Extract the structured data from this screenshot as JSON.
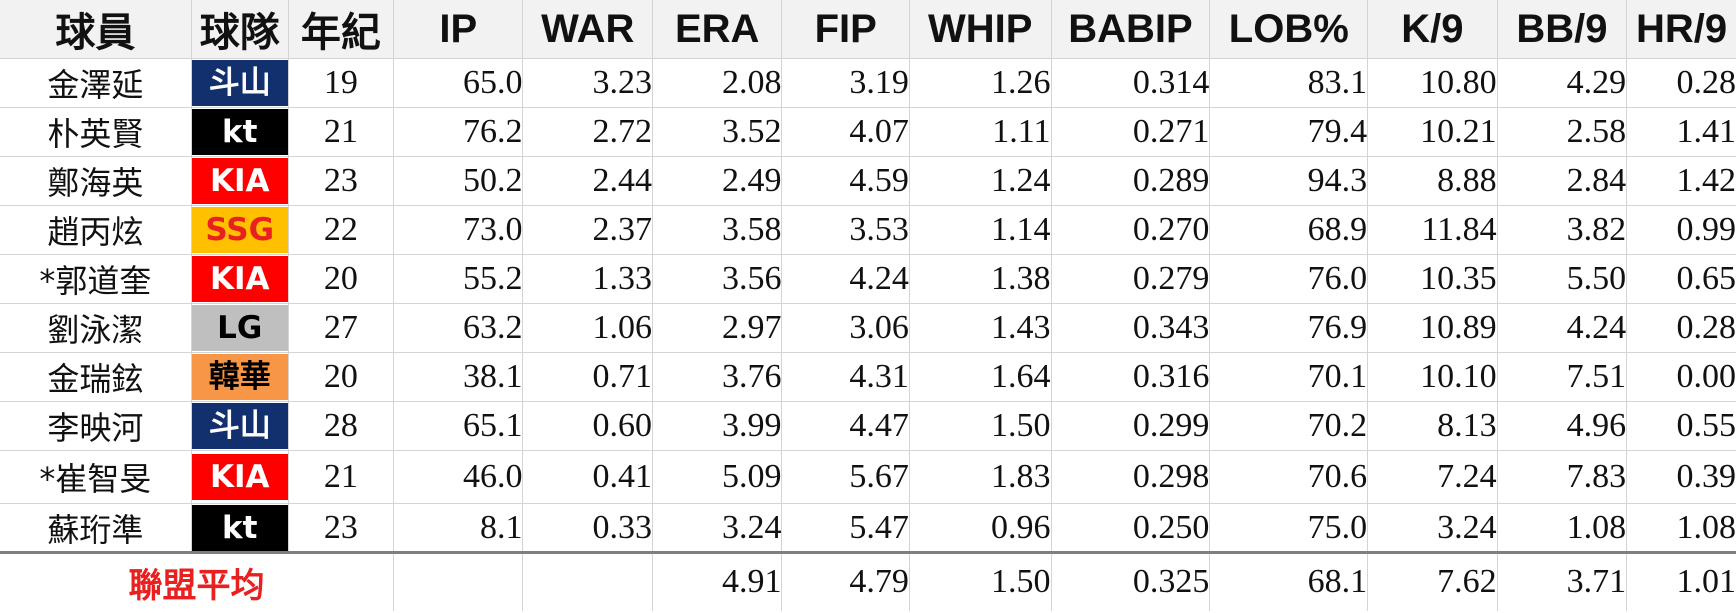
{
  "headers": [
    "球員",
    "球隊",
    "年紀",
    "IP",
    "WAR",
    "ERA",
    "FIP",
    "WHIP",
    "BABIP",
    "LOB%",
    "K/9",
    "BB/9",
    "HR/9"
  ],
  "team_colors": {
    "斗山": {
      "bg": "#13306e",
      "fg": "#ffffff"
    },
    "kt": {
      "bg": "#000000",
      "fg": "#ffffff"
    },
    "KIA": {
      "bg": "#ff0000",
      "fg": "#ffffff"
    },
    "SSG": {
      "bg": "#ffc000",
      "fg": "#e8201f"
    },
    "LG": {
      "bg": "#bfbfbf",
      "fg": "#000000"
    },
    "韓華": {
      "bg": "#f79646",
      "fg": "#000000"
    }
  },
  "rows": [
    {
      "player": "金澤延",
      "team": "斗山",
      "age": "19",
      "ip": "65.0",
      "war": "3.23",
      "era": "2.08",
      "fip": "3.19",
      "whip": "1.26",
      "babip": "0.314",
      "lob": "83.1",
      "k9": "10.80",
      "bb9": "4.29",
      "hr9": "0.28"
    },
    {
      "player": "朴英賢",
      "team": "kt",
      "age": "21",
      "ip": "76.2",
      "war": "2.72",
      "era": "3.52",
      "fip": "4.07",
      "whip": "1.11",
      "babip": "0.271",
      "lob": "79.4",
      "k9": "10.21",
      "bb9": "2.58",
      "hr9": "1.41"
    },
    {
      "player": "鄭海英",
      "team": "KIA",
      "age": "23",
      "ip": "50.2",
      "war": "2.44",
      "era": "2.49",
      "fip": "4.59",
      "whip": "1.24",
      "babip": "0.289",
      "lob": "94.3",
      "k9": "8.88",
      "bb9": "2.84",
      "hr9": "1.42"
    },
    {
      "player": "趙丙炫",
      "team": "SSG",
      "age": "22",
      "ip": "73.0",
      "war": "2.37",
      "era": "3.58",
      "fip": "3.53",
      "whip": "1.14",
      "babip": "0.270",
      "lob": "68.9",
      "k9": "11.84",
      "bb9": "3.82",
      "hr9": "0.99"
    },
    {
      "player": "*郭道奎",
      "team": "KIA",
      "age": "20",
      "ip": "55.2",
      "war": "1.33",
      "era": "3.56",
      "fip": "4.24",
      "whip": "1.38",
      "babip": "0.279",
      "lob": "76.0",
      "k9": "10.35",
      "bb9": "5.50",
      "hr9": "0.65"
    },
    {
      "player": "劉泳潔",
      "team": "LG",
      "age": "27",
      "ip": "63.2",
      "war": "1.06",
      "era": "2.97",
      "fip": "3.06",
      "whip": "1.43",
      "babip": "0.343",
      "lob": "76.9",
      "k9": "10.89",
      "bb9": "4.24",
      "hr9": "0.28"
    },
    {
      "player": "金瑞鉉",
      "team": "韓華",
      "age": "20",
      "ip": "38.1",
      "war": "0.71",
      "era": "3.76",
      "fip": "4.31",
      "whip": "1.64",
      "babip": "0.316",
      "lob": "70.1",
      "k9": "10.10",
      "bb9": "7.51",
      "hr9": "0.00"
    },
    {
      "player": "李映河",
      "team": "斗山",
      "age": "28",
      "ip": "65.1",
      "war": "0.60",
      "era": "3.99",
      "fip": "4.47",
      "whip": "1.50",
      "babip": "0.299",
      "lob": "70.2",
      "k9": "8.13",
      "bb9": "4.96",
      "hr9": "0.55"
    },
    {
      "player": "*崔智旻",
      "team": "KIA",
      "age": "21",
      "ip": "46.0",
      "war": "0.41",
      "era": "5.09",
      "fip": "5.67",
      "whip": "1.83",
      "babip": "0.298",
      "lob": "70.6",
      "k9": "7.24",
      "bb9": "7.83",
      "hr9": "0.39"
    },
    {
      "player": "蘇珩準",
      "team": "kt",
      "age": "23",
      "ip": "8.1",
      "war": "0.33",
      "era": "3.24",
      "fip": "5.47",
      "whip": "0.96",
      "babip": "0.250",
      "lob": "75.0",
      "k9": "3.24",
      "bb9": "1.08",
      "hr9": "1.08"
    }
  ],
  "league_average": {
    "label": "聯盟平均",
    "era": "4.91",
    "fip": "4.79",
    "whip": "1.50",
    "babip": "0.325",
    "lob": "68.1",
    "k9": "7.62",
    "bb9": "3.71",
    "hr9": "1.01"
  }
}
